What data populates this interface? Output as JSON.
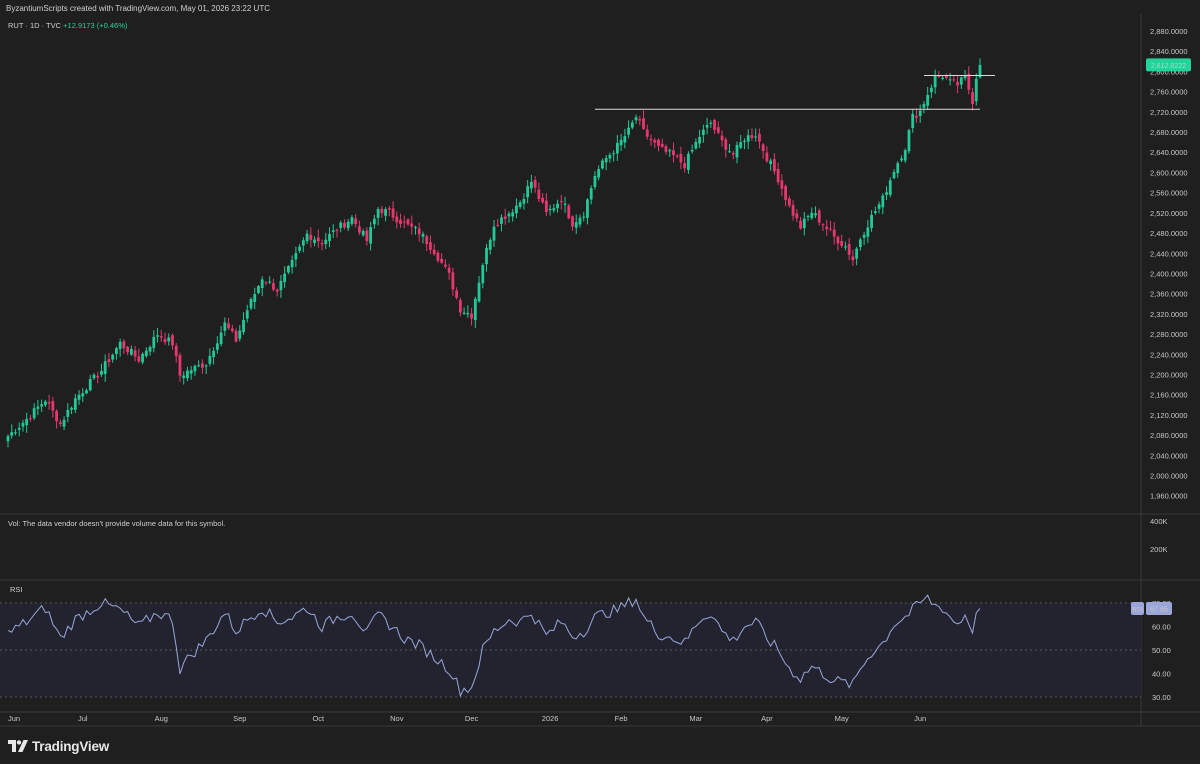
{
  "header": {
    "attribution": "ByzantiumScripts created with TradingView.com, May 01, 2026 23:22 UTC",
    "symbol_line": "RUT · 1D · TVC",
    "change": "+12.9173 (+0.46%)"
  },
  "volume_pane": {
    "note": "Vol: The data vendor doesn't provide volume data for this symbol.",
    "ticks": [
      "400K",
      "200K"
    ]
  },
  "rsi_pane": {
    "label": "RSI"
  },
  "branding": {
    "name": "TradingView",
    "icon": "tradingview-logo-icon"
  },
  "colors": {
    "up": "#22c997",
    "down": "#e5386f",
    "background": "#1f1f1f",
    "rsi_line": "#9aa6d9",
    "price_badge": "#22d39a",
    "rsi_badge": "#9aa6d9"
  },
  "chart_data": [
    {
      "type": "candlestick",
      "title": "",
      "xlabel": "",
      "ylabel": "",
      "price_ticks": [
        2880,
        2840,
        2800,
        2760,
        2720,
        2680,
        2640,
        2600,
        2560,
        2520,
        2480,
        2440,
        2400,
        2360,
        2320,
        2280,
        2240,
        2200,
        2160,
        2120,
        2080,
        2040,
        2000,
        1960
      ],
      "tick_labels": [
        "2,880.0000",
        "2,840.0000",
        "2,800.0000",
        "2,760.0000",
        "2,720.0000",
        "2,680.0000",
        "2,640.0000",
        "2,600.0000",
        "2,560.0000",
        "2,520.0000",
        "2,480.0000",
        "2,440.0000",
        "2,400.0000",
        "2,360.0000",
        "2,320.0000",
        "2,280.0000",
        "2,240.0000",
        "2,200.0000",
        "2,160.0000",
        "2,120.0000",
        "2,080.0000",
        "2,040.0000",
        "2,000.0000",
        "1,960.0000"
      ],
      "ylim": [
        1940,
        2900
      ],
      "x_labels": [
        "Jun",
        "Jul",
        "Aug",
        "Sep",
        "Oct",
        "Nov",
        "Dec",
        "2026",
        "Feb",
        "Mar",
        "Apr",
        "May",
        "Jun"
      ],
      "last_price": 2812.8222,
      "last_price_label": "2,812.8222",
      "horizontal_lines": [
        {
          "name": "resistance",
          "price": 2725,
          "from": 157,
          "to": 260
        },
        {
          "name": "range-top",
          "price": 2792,
          "from": 245,
          "to": 264
        }
      ],
      "close_keypoints": [
        [
          0,
          2078
        ],
        [
          5,
          2112
        ],
        [
          10,
          2150
        ],
        [
          14,
          2102
        ],
        [
          18,
          2152
        ],
        [
          25,
          2208
        ],
        [
          30,
          2262
        ],
        [
          35,
          2230
        ],
        [
          40,
          2280
        ],
        [
          44,
          2262
        ],
        [
          46,
          2198
        ],
        [
          49,
          2210
        ],
        [
          53,
          2222
        ],
        [
          58,
          2300
        ],
        [
          61,
          2268
        ],
        [
          64,
          2328
        ],
        [
          68,
          2392
        ],
        [
          72,
          2368
        ],
        [
          76,
          2420
        ],
        [
          80,
          2478
        ],
        [
          84,
          2462
        ],
        [
          88,
          2488
        ],
        [
          92,
          2510
        ],
        [
          96,
          2465
        ],
        [
          99,
          2528
        ],
        [
          102,
          2520
        ],
        [
          106,
          2498
        ],
        [
          110,
          2482
        ],
        [
          114,
          2445
        ],
        [
          118,
          2396
        ],
        [
          121,
          2330
        ],
        [
          124,
          2318
        ],
        [
          127,
          2420
        ],
        [
          130,
          2498
        ],
        [
          134,
          2520
        ],
        [
          137,
          2542
        ],
        [
          140,
          2582
        ],
        [
          144,
          2518
        ],
        [
          148,
          2548
        ],
        [
          151,
          2500
        ],
        [
          154,
          2520
        ],
        [
          157,
          2595
        ],
        [
          160,
          2628
        ],
        [
          163,
          2652
        ],
        [
          166,
          2682
        ],
        [
          168,
          2710
        ],
        [
          170,
          2680
        ],
        [
          174,
          2648
        ],
        [
          178,
          2632
        ],
        [
          181,
          2615
        ],
        [
          185,
          2672
        ],
        [
          188,
          2698
        ],
        [
          191,
          2660
        ],
        [
          194,
          2636
        ],
        [
          197,
          2668
        ],
        [
          200,
          2676
        ],
        [
          203,
          2630
        ],
        [
          206,
          2588
        ],
        [
          209,
          2532
        ],
        [
          212,
          2492
        ],
        [
          215,
          2522
        ],
        [
          218,
          2498
        ],
        [
          221,
          2472
        ],
        [
          224,
          2454
        ],
        [
          226,
          2428
        ],
        [
          228,
          2470
        ],
        [
          231,
          2512
        ],
        [
          234,
          2548
        ],
        [
          237,
          2605
        ],
        [
          240,
          2650
        ],
        [
          242,
          2710
        ],
        [
          244,
          2722
        ],
        [
          246,
          2756
        ],
        [
          248,
          2788
        ],
        [
          250,
          2792
        ],
        [
          252,
          2778
        ],
        [
          254,
          2774
        ],
        [
          256,
          2788
        ],
        [
          258,
          2742
        ],
        [
          259,
          2790
        ],
        [
          260,
          2812.82
        ]
      ]
    },
    {
      "type": "line",
      "name": "RSI",
      "levels": [
        70,
        50,
        30
      ],
      "level_labels": [
        "70.00",
        "60.00",
        "50.00",
        "40.00",
        "30.00"
      ],
      "ylim": [
        25,
        76
      ],
      "last_value": 67.65,
      "last_value_label": "67.65",
      "keypoints": [
        [
          0,
          57
        ],
        [
          5,
          62
        ],
        [
          10,
          68
        ],
        [
          14,
          55
        ],
        [
          18,
          63
        ],
        [
          25,
          70
        ],
        [
          30,
          67
        ],
        [
          35,
          60
        ],
        [
          40,
          66
        ],
        [
          44,
          63
        ],
        [
          46,
          42
        ],
        [
          49,
          48
        ],
        [
          53,
          54
        ],
        [
          58,
          66
        ],
        [
          61,
          58
        ],
        [
          64,
          63
        ],
        [
          68,
          68
        ],
        [
          72,
          62
        ],
        [
          76,
          64
        ],
        [
          80,
          68
        ],
        [
          84,
          60
        ],
        [
          88,
          64
        ],
        [
          92,
          66
        ],
        [
          96,
          57
        ],
        [
          99,
          65
        ],
        [
          102,
          61
        ],
        [
          106,
          55
        ],
        [
          110,
          52
        ],
        [
          114,
          47
        ],
        [
          118,
          42
        ],
        [
          121,
          33
        ],
        [
          124,
          34
        ],
        [
          127,
          50
        ],
        [
          130,
          58
        ],
        [
          134,
          63
        ],
        [
          137,
          62
        ],
        [
          140,
          66
        ],
        [
          144,
          56
        ],
        [
          148,
          62
        ],
        [
          151,
          56
        ],
        [
          154,
          58
        ],
        [
          157,
          64
        ],
        [
          160,
          66
        ],
        [
          163,
          67
        ],
        [
          166,
          70
        ],
        [
          168,
          72
        ],
        [
          170,
          64
        ],
        [
          174,
          57
        ],
        [
          178,
          55
        ],
        [
          181,
          53
        ],
        [
          185,
          63
        ],
        [
          188,
          66
        ],
        [
          191,
          58
        ],
        [
          194,
          54
        ],
        [
          197,
          60
        ],
        [
          200,
          62
        ],
        [
          203,
          55
        ],
        [
          206,
          50
        ],
        [
          209,
          42
        ],
        [
          212,
          38
        ],
        [
          215,
          43
        ],
        [
          218,
          40
        ],
        [
          221,
          37
        ],
        [
          224,
          36
        ],
        [
          226,
          35
        ],
        [
          228,
          42
        ],
        [
          231,
          49
        ],
        [
          234,
          53
        ],
        [
          237,
          61
        ],
        [
          240,
          64
        ],
        [
          242,
          67
        ],
        [
          244,
          70
        ],
        [
          246,
          72
        ],
        [
          248,
          69
        ],
        [
          250,
          68
        ],
        [
          252,
          64
        ],
        [
          254,
          61
        ],
        [
          256,
          65
        ],
        [
          258,
          59
        ],
        [
          259,
          64
        ],
        [
          260,
          67.65
        ]
      ]
    }
  ]
}
